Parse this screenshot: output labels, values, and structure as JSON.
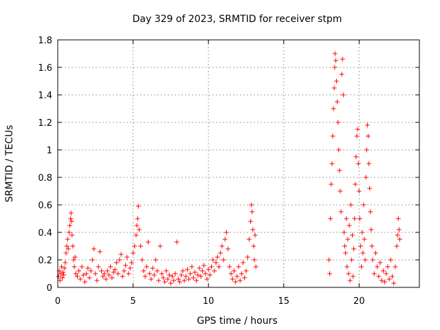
{
  "chart_data": {
    "type": "scatter",
    "title": "Day 329 of 2023, SRMTID for receiver stpm",
    "xlabel": "GPS time / hours",
    "ylabel": "SRMTID / TECUs",
    "xlim": [
      0,
      24
    ],
    "ylim": [
      0,
      1.8
    ],
    "xticks": [
      0,
      5,
      10,
      15,
      20
    ],
    "yticks": [
      0,
      0.2,
      0.4,
      0.6,
      0.8,
      1,
      1.2,
      1.4,
      1.6,
      1.8
    ],
    "grid": true,
    "marker": "+",
    "color": "#ff0000",
    "series": [
      {
        "name": "SRMTID",
        "points": [
          [
            0.05,
            0.08
          ],
          [
            0.1,
            0.12
          ],
          [
            0.15,
            0.05
          ],
          [
            0.2,
            0.1
          ],
          [
            0.25,
            0.15
          ],
          [
            0.3,
            0.07
          ],
          [
            0.35,
            0.11
          ],
          [
            0.4,
            0.09
          ],
          [
            0.45,
            0.14
          ],
          [
            0.5,
            0.18
          ],
          [
            0.55,
            0.25
          ],
          [
            0.6,
            0.3
          ],
          [
            0.65,
            0.35
          ],
          [
            0.7,
            0.28
          ],
          [
            0.75,
            0.4
          ],
          [
            0.8,
            0.45
          ],
          [
            0.85,
            0.5
          ],
          [
            0.88,
            0.54
          ],
          [
            0.92,
            0.48
          ],
          [
            0.95,
            0.38
          ],
          [
            1.0,
            0.3
          ],
          [
            1.05,
            0.2
          ],
          [
            1.1,
            0.15
          ],
          [
            1.15,
            0.22
          ],
          [
            1.2,
            0.1
          ],
          [
            1.3,
            0.08
          ],
          [
            1.4,
            0.12
          ],
          [
            1.5,
            0.06
          ],
          [
            1.6,
            0.15
          ],
          [
            1.7,
            0.09
          ],
          [
            1.8,
            0.04
          ],
          [
            1.9,
            0.1
          ],
          [
            2.0,
            0.14
          ],
          [
            2.1,
            0.07
          ],
          [
            2.2,
            0.12
          ],
          [
            2.3,
            0.2
          ],
          [
            2.4,
            0.28
          ],
          [
            2.5,
            0.1
          ],
          [
            2.6,
            0.05
          ],
          [
            2.7,
            0.15
          ],
          [
            2.8,
            0.26
          ],
          [
            2.9,
            0.12
          ],
          [
            3.0,
            0.08
          ],
          [
            3.1,
            0.1
          ],
          [
            3.2,
            0.06
          ],
          [
            3.3,
            0.12
          ],
          [
            3.4,
            0.09
          ],
          [
            3.5,
            0.15
          ],
          [
            3.6,
            0.07
          ],
          [
            3.7,
            0.11
          ],
          [
            3.8,
            0.13
          ],
          [
            3.9,
            0.18
          ],
          [
            4.0,
            0.1
          ],
          [
            4.1,
            0.2
          ],
          [
            4.2,
            0.24
          ],
          [
            4.3,
            0.08
          ],
          [
            4.4,
            0.12
          ],
          [
            4.5,
            0.16
          ],
          [
            4.6,
            0.22
          ],
          [
            4.7,
            0.1
          ],
          [
            4.8,
            0.14
          ],
          [
            4.9,
            0.18
          ],
          [
            5.0,
            0.25
          ],
          [
            5.1,
            0.3
          ],
          [
            5.2,
            0.38
          ],
          [
            5.25,
            0.45
          ],
          [
            5.3,
            0.5
          ],
          [
            5.35,
            0.59
          ],
          [
            5.4,
            0.42
          ],
          [
            5.5,
            0.3
          ],
          [
            5.6,
            0.2
          ],
          [
            5.7,
            0.12
          ],
          [
            5.8,
            0.08
          ],
          [
            5.9,
            0.15
          ],
          [
            6.0,
            0.33
          ],
          [
            6.1,
            0.1
          ],
          [
            6.2,
            0.06
          ],
          [
            6.3,
            0.14
          ],
          [
            6.4,
            0.09
          ],
          [
            6.5,
            0.2
          ],
          [
            6.6,
            0.12
          ],
          [
            6.7,
            0.05
          ],
          [
            6.8,
            0.3
          ],
          [
            6.9,
            0.1
          ],
          [
            7.0,
            0.07
          ],
          [
            7.1,
            0.04
          ],
          [
            7.2,
            0.12
          ],
          [
            7.3,
            0.06
          ],
          [
            7.4,
            0.09
          ],
          [
            7.5,
            0.03
          ],
          [
            7.6,
            0.08
          ],
          [
            7.7,
            0.05
          ],
          [
            7.8,
            0.1
          ],
          [
            7.9,
            0.33
          ],
          [
            8.0,
            0.06
          ],
          [
            8.1,
            0.04
          ],
          [
            8.2,
            0.09
          ],
          [
            8.3,
            0.12
          ],
          [
            8.4,
            0.05
          ],
          [
            8.5,
            0.08
          ],
          [
            8.6,
            0.13
          ],
          [
            8.7,
            0.06
          ],
          [
            8.8,
            0.1
          ],
          [
            8.9,
            0.15
          ],
          [
            9.0,
            0.07
          ],
          [
            9.1,
            0.11
          ],
          [
            9.2,
            0.05
          ],
          [
            9.3,
            0.09
          ],
          [
            9.4,
            0.14
          ],
          [
            9.5,
            0.08
          ],
          [
            9.6,
            0.12
          ],
          [
            9.7,
            0.16
          ],
          [
            9.8,
            0.1
          ],
          [
            9.9,
            0.06
          ],
          [
            10.0,
            0.13
          ],
          [
            10.1,
            0.09
          ],
          [
            10.2,
            0.15
          ],
          [
            10.3,
            0.2
          ],
          [
            10.4,
            0.12
          ],
          [
            10.5,
            0.18
          ],
          [
            10.6,
            0.22
          ],
          [
            10.7,
            0.15
          ],
          [
            10.8,
            0.25
          ],
          [
            10.9,
            0.3
          ],
          [
            11.0,
            0.2
          ],
          [
            11.1,
            0.35
          ],
          [
            11.2,
            0.4
          ],
          [
            11.3,
            0.28
          ],
          [
            11.4,
            0.15
          ],
          [
            11.5,
            0.1
          ],
          [
            11.6,
            0.06
          ],
          [
            11.7,
            0.12
          ],
          [
            11.8,
            0.04
          ],
          [
            11.9,
            0.08
          ],
          [
            12.0,
            0.15
          ],
          [
            12.1,
            0.05
          ],
          [
            12.2,
            0.1
          ],
          [
            12.3,
            0.18
          ],
          [
            12.4,
            0.07
          ],
          [
            12.5,
            0.12
          ],
          [
            12.6,
            0.22
          ],
          [
            12.7,
            0.35
          ],
          [
            12.8,
            0.48
          ],
          [
            12.85,
            0.6
          ],
          [
            12.9,
            0.55
          ],
          [
            12.95,
            0.42
          ],
          [
            13.0,
            0.3
          ],
          [
            13.05,
            0.2
          ],
          [
            13.1,
            0.38
          ],
          [
            13.15,
            0.15
          ],
          [
            18.0,
            0.2
          ],
          [
            18.05,
            0.1
          ],
          [
            18.1,
            0.5
          ],
          [
            18.15,
            0.75
          ],
          [
            18.2,
            0.9
          ],
          [
            18.25,
            1.1
          ],
          [
            18.3,
            1.3
          ],
          [
            18.35,
            1.45
          ],
          [
            18.38,
            1.6
          ],
          [
            18.4,
            1.7
          ],
          [
            18.45,
            1.65
          ],
          [
            18.5,
            1.5
          ],
          [
            18.55,
            1.35
          ],
          [
            18.6,
            1.2
          ],
          [
            18.65,
            1.0
          ],
          [
            18.7,
            0.85
          ],
          [
            18.75,
            0.7
          ],
          [
            18.8,
            0.55
          ],
          [
            18.85,
            1.55
          ],
          [
            18.9,
            1.66
          ],
          [
            18.95,
            1.4
          ],
          [
            19.0,
            0.4
          ],
          [
            19.05,
            0.3
          ],
          [
            19.1,
            0.25
          ],
          [
            19.15,
            0.5
          ],
          [
            19.2,
            0.15
          ],
          [
            19.25,
            0.35
          ],
          [
            19.3,
            0.1
          ],
          [
            19.35,
            0.45
          ],
          [
            19.4,
            0.05
          ],
          [
            19.45,
            0.6
          ],
          [
            19.5,
            0.2
          ],
          [
            19.55,
            0.38
          ],
          [
            19.6,
            0.08
          ],
          [
            19.65,
            0.28
          ],
          [
            19.7,
            0.5
          ],
          [
            19.75,
            0.75
          ],
          [
            19.8,
            0.95
          ],
          [
            19.85,
            1.1
          ],
          [
            19.9,
            1.15
          ],
          [
            19.95,
            0.9
          ],
          [
            20.0,
            0.7
          ],
          [
            20.05,
            0.5
          ],
          [
            20.1,
            0.3
          ],
          [
            20.15,
            0.15
          ],
          [
            20.2,
            0.4
          ],
          [
            20.25,
            0.25
          ],
          [
            20.3,
            0.6
          ],
          [
            20.35,
            0.35
          ],
          [
            20.4,
            0.2
          ],
          [
            20.45,
            0.8
          ],
          [
            20.5,
            1.0
          ],
          [
            20.55,
            1.18
          ],
          [
            20.6,
            1.1
          ],
          [
            20.65,
            0.9
          ],
          [
            20.7,
            0.72
          ],
          [
            20.75,
            0.55
          ],
          [
            20.8,
            0.42
          ],
          [
            20.85,
            0.3
          ],
          [
            20.9,
            0.2
          ],
          [
            21.0,
            0.1
          ],
          [
            21.1,
            0.25
          ],
          [
            21.2,
            0.15
          ],
          [
            21.3,
            0.08
          ],
          [
            21.4,
            0.18
          ],
          [
            21.5,
            0.05
          ],
          [
            21.6,
            0.12
          ],
          [
            21.7,
            0.04
          ],
          [
            21.8,
            0.1
          ],
          [
            21.9,
            0.15
          ],
          [
            22.0,
            0.06
          ],
          [
            22.1,
            0.2
          ],
          [
            22.2,
            0.08
          ],
          [
            22.3,
            0.03
          ],
          [
            22.4,
            0.15
          ],
          [
            22.5,
            0.3
          ],
          [
            22.55,
            0.38
          ],
          [
            22.6,
            0.5
          ],
          [
            22.65,
            0.42
          ],
          [
            22.7,
            0.35
          ]
        ]
      }
    ]
  }
}
